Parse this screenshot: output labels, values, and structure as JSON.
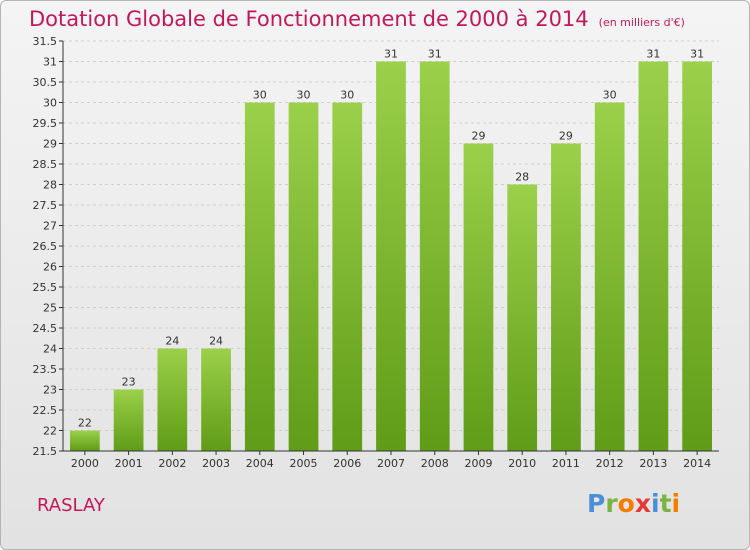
{
  "title": "Dotation Globale de Fonctionnement de 2000 à 2014",
  "subtitle": "(en milliers d'€)",
  "commune": "RASLAY",
  "logo": {
    "letters": [
      "P",
      "r",
      "o",
      "x",
      "i",
      "t",
      "i"
    ],
    "colors": [
      "#4a90d9",
      "#7cb342",
      "#f57c00",
      "#e53935",
      "#4a90d9",
      "#7cb342",
      "#f57c00"
    ]
  },
  "colors": {
    "accent": "#c2185b",
    "bar_top": "#9bd04a",
    "bar_bottom": "#5f9c17",
    "axis": "#333333"
  },
  "chart_data": {
    "type": "bar",
    "title": "Dotation Globale de Fonctionnement de 2000 à 2014",
    "subtitle": "(en milliers d'€)",
    "xlabel": "",
    "ylabel": "",
    "categories": [
      "2000",
      "2001",
      "2002",
      "2003",
      "2004",
      "2005",
      "2006",
      "2007",
      "2008",
      "2009",
      "2010",
      "2011",
      "2012",
      "2013",
      "2014"
    ],
    "values": [
      22,
      23,
      24,
      24,
      30,
      30,
      30,
      31,
      31,
      29,
      28,
      29,
      30,
      31,
      31
    ],
    "ylim": [
      21.5,
      31.5
    ],
    "ytick_step": 0.5,
    "grid": true,
    "data_labels": true
  }
}
